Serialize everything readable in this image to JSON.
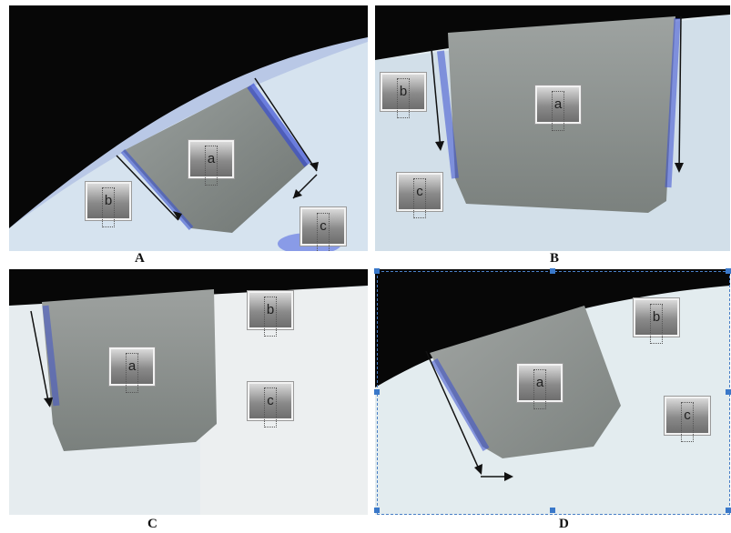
{
  "panels": [
    {
      "id": "A",
      "tags": [
        "a",
        "b",
        "c"
      ]
    },
    {
      "id": "B",
      "tags": [
        "a",
        "b",
        "c"
      ]
    },
    {
      "id": "C",
      "tags": [
        "a",
        "b",
        "c"
      ]
    },
    {
      "id": "D",
      "tags": [
        "a",
        "b",
        "c"
      ]
    }
  ],
  "colors": {
    "background_dark": "#0a0a0a",
    "tooth_white": "#e8eef2",
    "restoration_gray": "#8a8e8c",
    "dye_blue": "#3a55d0",
    "selection_blue": "#3a78c9"
  }
}
